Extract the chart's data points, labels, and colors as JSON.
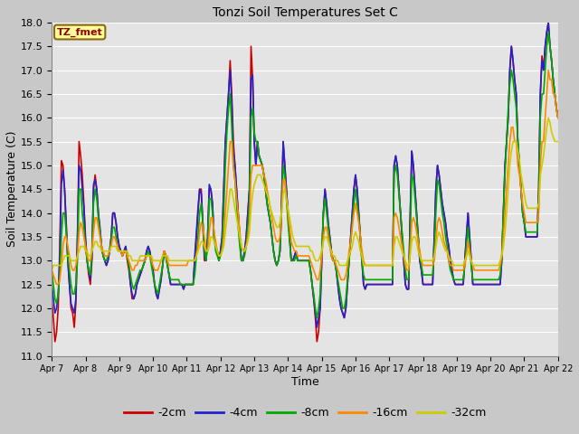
{
  "title": "Tonzi Soil Temperatures Set C",
  "xlabel": "Time",
  "ylabel": "Soil Temperature (C)",
  "ylim": [
    11.0,
    18.0
  ],
  "xtick_labels": [
    "Apr 7",
    "Apr 8",
    "Apr 9",
    "Apr 10",
    "Apr 11",
    "Apr 12",
    "Apr 13",
    "Apr 14",
    "Apr 15",
    "Apr 16",
    "Apr 17",
    "Apr 18",
    "Apr 19",
    "Apr 20",
    "Apr 21",
    "Apr 22"
  ],
  "fig_bg": "#d4d4d4",
  "plot_bg": "#e8e8e8",
  "legend_label": "TZ_fmet",
  "legend_box_color": "#ffff99",
  "legend_box_edge": "#8b6914",
  "series_colors": [
    "#cc0000",
    "#2222cc",
    "#00aa00",
    "#ff8800",
    "#cccc00"
  ],
  "series_labels": [
    "-2cm",
    "-4cm",
    "-8cm",
    "-16cm",
    "-32cm"
  ],
  "line_width": 1.2,
  "data_2cm": [
    12.2,
    11.8,
    11.3,
    11.5,
    12.0,
    13.3,
    15.1,
    15.0,
    14.5,
    13.8,
    13.0,
    12.5,
    12.0,
    11.9,
    11.6,
    12.1,
    13.5,
    15.5,
    15.2,
    14.8,
    14.2,
    13.5,
    13.0,
    12.7,
    12.5,
    13.0,
    14.5,
    14.8,
    14.5,
    14.0,
    13.6,
    13.3,
    13.1,
    13.0,
    12.9,
    13.0,
    13.2,
    13.5,
    14.0,
    14.0,
    13.8,
    13.5,
    13.3,
    13.2,
    13.1,
    13.2,
    13.3,
    13.0,
    12.8,
    12.5,
    12.2,
    12.2,
    12.3,
    12.5,
    12.6,
    12.7,
    12.8,
    12.9,
    13.0,
    13.2,
    13.3,
    13.2,
    13.0,
    12.8,
    12.5,
    12.3,
    12.2,
    12.4,
    12.6,
    12.9,
    13.2,
    13.1,
    12.9,
    12.7,
    12.5,
    12.5,
    12.5,
    12.5,
    12.5,
    12.5,
    12.5,
    12.5,
    12.4,
    12.5,
    12.5,
    12.5,
    12.5,
    12.5,
    12.5,
    13.0,
    13.5,
    14.0,
    14.5,
    14.5,
    13.8,
    13.0,
    13.0,
    13.5,
    14.5,
    14.5,
    14.2,
    13.5,
    13.3,
    13.2,
    13.0,
    13.2,
    13.5,
    14.5,
    15.5,
    16.0,
    16.5,
    17.2,
    16.5,
    15.5,
    15.0,
    14.5,
    14.0,
    13.5,
    13.0,
    13.0,
    13.2,
    13.5,
    14.0,
    14.5,
    17.5,
    16.8,
    15.5,
    15.0,
    15.5,
    15.2,
    15.1,
    15.0,
    14.8,
    14.5,
    14.2,
    14.0,
    13.8,
    13.5,
    13.2,
    13.0,
    12.9,
    13.0,
    13.2,
    14.2,
    15.5,
    15.0,
    14.5,
    14.0,
    13.5,
    13.0,
    13.0,
    13.1,
    13.2,
    13.0,
    13.0,
    13.0,
    13.0,
    13.0,
    13.0,
    13.0,
    13.0,
    12.8,
    12.5,
    12.2,
    11.8,
    11.3,
    11.5,
    12.0,
    13.0,
    14.0,
    14.5,
    14.2,
    13.8,
    13.5,
    13.2,
    13.0,
    13.0,
    12.8,
    12.5,
    12.2,
    12.0,
    11.9,
    11.8,
    12.0,
    12.5,
    13.0,
    13.5,
    14.0,
    14.5,
    14.8,
    14.5,
    14.0,
    13.5,
    13.0,
    12.5,
    12.4,
    12.5,
    12.5,
    12.5,
    12.5,
    12.5,
    12.5,
    12.5,
    12.5,
    12.5,
    12.5,
    12.5,
    12.5,
    12.5,
    12.5,
    12.5,
    12.5,
    12.5,
    15.0,
    15.2,
    15.0,
    14.5,
    14.0,
    13.5,
    13.0,
    12.5,
    12.4,
    12.4,
    13.9,
    15.3,
    15.0,
    14.5,
    14.0,
    13.5,
    13.0,
    12.8,
    12.5,
    12.5,
    12.5,
    12.5,
    12.5,
    12.5,
    12.5,
    13.5,
    14.5,
    15.0,
    14.8,
    14.5,
    14.2,
    14.0,
    13.8,
    13.5,
    13.3,
    13.0,
    12.8,
    12.6,
    12.5,
    12.5,
    12.5,
    12.5,
    12.5,
    12.5,
    13.0,
    13.5,
    14.0,
    13.5,
    13.0,
    12.5,
    12.5,
    12.5,
    12.5,
    12.5,
    12.5,
    12.5,
    12.5,
    12.5,
    12.5,
    12.5,
    12.5,
    12.5,
    12.5,
    12.5,
    12.5,
    12.5,
    12.5,
    13.0,
    14.0,
    15.0,
    15.5,
    16.0,
    17.0,
    17.5,
    17.2,
    16.8,
    16.5,
    15.5,
    15.0,
    14.5,
    14.0,
    13.8,
    13.5,
    13.5,
    13.5,
    13.5,
    13.5,
    13.5,
    13.5,
    13.5,
    14.5,
    16.5,
    17.3,
    17.0,
    17.5,
    17.8,
    18.0,
    17.5,
    17.2,
    16.8,
    16.5,
    16.2,
    16.0
  ],
  "data_4cm": [
    12.5,
    12.2,
    11.9,
    12.0,
    12.3,
    13.0,
    14.6,
    14.9,
    14.5,
    13.7,
    13.0,
    12.5,
    12.1,
    12.0,
    11.9,
    12.2,
    13.5,
    15.0,
    14.9,
    14.5,
    14.1,
    13.4,
    13.0,
    12.8,
    12.6,
    13.1,
    14.6,
    14.7,
    14.5,
    14.0,
    13.7,
    13.3,
    13.1,
    13.0,
    12.9,
    13.0,
    13.2,
    13.5,
    14.0,
    14.0,
    13.8,
    13.5,
    13.3,
    13.2,
    13.1,
    13.2,
    13.3,
    13.1,
    12.9,
    12.5,
    12.3,
    12.2,
    12.3,
    12.5,
    12.6,
    12.7,
    12.8,
    12.9,
    13.0,
    13.2,
    13.3,
    13.2,
    13.0,
    12.8,
    12.5,
    12.3,
    12.2,
    12.4,
    12.6,
    12.9,
    13.2,
    13.1,
    12.9,
    12.7,
    12.5,
    12.5,
    12.5,
    12.5,
    12.5,
    12.5,
    12.5,
    12.5,
    12.4,
    12.5,
    12.5,
    12.5,
    12.5,
    12.5,
    12.5,
    13.1,
    13.6,
    14.1,
    14.5,
    14.4,
    13.8,
    13.1,
    13.0,
    13.5,
    14.6,
    14.5,
    14.2,
    13.5,
    13.3,
    13.2,
    13.0,
    13.2,
    13.5,
    14.5,
    15.5,
    16.0,
    16.5,
    17.0,
    16.3,
    15.3,
    15.0,
    14.5,
    14.0,
    13.5,
    13.0,
    13.0,
    13.2,
    13.5,
    14.0,
    14.5,
    16.8,
    16.9,
    15.5,
    15.0,
    15.5,
    15.2,
    15.1,
    15.0,
    14.8,
    14.5,
    14.2,
    14.0,
    13.8,
    13.5,
    13.2,
    13.0,
    12.9,
    13.0,
    13.2,
    14.2,
    15.5,
    15.0,
    14.5,
    14.0,
    13.5,
    13.0,
    13.0,
    13.1,
    13.2,
    13.0,
    13.0,
    13.0,
    13.0,
    13.0,
    13.0,
    13.0,
    13.0,
    12.8,
    12.5,
    12.2,
    11.9,
    11.6,
    11.8,
    12.0,
    13.0,
    14.0,
    14.5,
    14.2,
    13.8,
    13.5,
    13.2,
    13.0,
    13.0,
    12.8,
    12.5,
    12.2,
    12.0,
    11.9,
    11.8,
    12.0,
    12.5,
    13.0,
    13.5,
    14.0,
    14.5,
    14.8,
    14.5,
    14.0,
    13.5,
    13.0,
    12.5,
    12.4,
    12.5,
    12.5,
    12.5,
    12.5,
    12.5,
    12.5,
    12.5,
    12.5,
    12.5,
    12.5,
    12.5,
    12.5,
    12.5,
    12.5,
    12.5,
    12.5,
    12.5,
    15.0,
    15.2,
    15.0,
    14.5,
    14.0,
    13.5,
    13.0,
    12.5,
    12.4,
    12.4,
    13.9,
    15.3,
    15.0,
    14.5,
    14.0,
    13.5,
    13.0,
    12.8,
    12.5,
    12.5,
    12.5,
    12.5,
    12.5,
    12.5,
    12.5,
    13.5,
    14.5,
    15.0,
    14.8,
    14.5,
    14.2,
    14.0,
    13.8,
    13.5,
    13.3,
    13.0,
    12.8,
    12.6,
    12.5,
    12.5,
    12.5,
    12.5,
    12.5,
    12.5,
    13.0,
    13.5,
    14.0,
    13.5,
    13.0,
    12.5,
    12.5,
    12.5,
    12.5,
    12.5,
    12.5,
    12.5,
    12.5,
    12.5,
    12.5,
    12.5,
    12.5,
    12.5,
    12.5,
    12.5,
    12.5,
    12.5,
    12.5,
    13.0,
    14.0,
    15.0,
    15.5,
    16.0,
    17.0,
    17.5,
    17.2,
    16.8,
    16.5,
    15.5,
    15.0,
    14.5,
    14.0,
    13.8,
    13.5,
    13.5,
    13.5,
    13.5,
    13.5,
    13.5,
    13.5,
    13.5,
    14.5,
    16.5,
    17.2,
    17.0,
    17.5,
    17.8,
    18.0,
    17.5,
    17.2,
    16.8,
    16.5,
    16.2,
    16.0
  ],
  "data_8cm": [
    12.8,
    12.5,
    12.2,
    12.1,
    12.3,
    12.7,
    13.5,
    14.0,
    14.0,
    13.6,
    13.1,
    12.8,
    12.5,
    12.3,
    12.3,
    12.5,
    13.0,
    14.5,
    14.5,
    14.0,
    13.7,
    13.3,
    13.0,
    12.8,
    12.7,
    13.2,
    14.2,
    14.5,
    14.3,
    13.9,
    13.6,
    13.3,
    13.1,
    13.0,
    13.0,
    13.1,
    13.2,
    13.4,
    13.7,
    13.7,
    13.5,
    13.3,
    13.2,
    13.2,
    13.1,
    13.2,
    13.2,
    13.1,
    12.9,
    12.7,
    12.5,
    12.4,
    12.5,
    12.6,
    12.7,
    12.8,
    12.8,
    12.9,
    13.0,
    13.1,
    13.2,
    13.1,
    12.9,
    12.7,
    12.5,
    12.4,
    12.3,
    12.5,
    12.7,
    12.9,
    13.2,
    13.1,
    12.9,
    12.7,
    12.6,
    12.6,
    12.6,
    12.6,
    12.6,
    12.6,
    12.5,
    12.5,
    12.5,
    12.5,
    12.5,
    12.5,
    12.5,
    12.5,
    12.5,
    12.7,
    13.1,
    13.5,
    14.0,
    14.2,
    13.8,
    13.2,
    13.0,
    13.3,
    14.3,
    14.3,
    14.0,
    13.5,
    13.2,
    13.1,
    13.0,
    13.1,
    13.3,
    14.0,
    15.0,
    15.7,
    16.2,
    16.5,
    15.8,
    15.0,
    14.7,
    14.2,
    13.7,
    13.3,
    13.0,
    13.0,
    13.1,
    13.3,
    13.7,
    14.2,
    16.0,
    16.2,
    15.7,
    15.5,
    15.5,
    15.2,
    15.1,
    15.0,
    14.8,
    14.5,
    14.2,
    14.0,
    13.8,
    13.5,
    13.2,
    13.0,
    12.9,
    13.0,
    13.2,
    14.0,
    15.0,
    14.8,
    14.3,
    13.8,
    13.4,
    13.0,
    13.0,
    13.0,
    13.1,
    13.0,
    13.0,
    13.0,
    13.0,
    13.0,
    13.0,
    13.0,
    13.0,
    12.8,
    12.5,
    12.3,
    12.0,
    11.8,
    12.0,
    12.3,
    13.2,
    14.0,
    14.3,
    14.0,
    13.7,
    13.4,
    13.1,
    13.0,
    13.0,
    12.8,
    12.6,
    12.4,
    12.2,
    12.0,
    12.0,
    12.2,
    12.6,
    13.0,
    13.4,
    13.8,
    14.2,
    14.5,
    14.2,
    13.9,
    13.5,
    13.0,
    12.7,
    12.6,
    12.6,
    12.6,
    12.6,
    12.6,
    12.6,
    12.6,
    12.6,
    12.6,
    12.6,
    12.6,
    12.6,
    12.6,
    12.6,
    12.6,
    12.6,
    12.6,
    12.6,
    14.8,
    15.0,
    14.8,
    14.4,
    14.0,
    13.6,
    13.2,
    12.8,
    12.6,
    12.6,
    13.5,
    14.8,
    14.7,
    14.3,
    13.9,
    13.5,
    13.1,
    12.9,
    12.7,
    12.7,
    12.7,
    12.7,
    12.7,
    12.7,
    12.7,
    13.2,
    14.0,
    14.7,
    14.6,
    14.3,
    14.0,
    13.8,
    13.5,
    13.3,
    13.0,
    12.8,
    12.7,
    12.6,
    12.6,
    12.6,
    12.6,
    12.6,
    12.6,
    12.6,
    12.9,
    13.3,
    13.7,
    13.3,
    12.9,
    12.6,
    12.6,
    12.6,
    12.6,
    12.6,
    12.6,
    12.6,
    12.6,
    12.6,
    12.6,
    12.6,
    12.6,
    12.6,
    12.6,
    12.6,
    12.6,
    12.6,
    12.7,
    13.1,
    14.0,
    14.8,
    15.5,
    16.2,
    16.7,
    17.0,
    16.8,
    16.5,
    16.2,
    15.5,
    15.0,
    14.5,
    14.0,
    13.8,
    13.6,
    13.6,
    13.6,
    13.6,
    13.6,
    13.6,
    13.6,
    13.6,
    14.2,
    16.0,
    16.5,
    16.5,
    17.0,
    17.5,
    17.8,
    17.5,
    17.2,
    16.8,
    16.5,
    16.2,
    16.0
  ],
  "data_16cm": [
    12.8,
    12.7,
    12.6,
    12.5,
    12.5,
    12.6,
    12.9,
    13.3,
    13.5,
    13.5,
    13.3,
    13.1,
    12.9,
    12.8,
    12.8,
    12.9,
    13.1,
    13.6,
    13.8,
    13.7,
    13.5,
    13.3,
    13.1,
    13.0,
    13.0,
    13.2,
    13.6,
    13.9,
    13.9,
    13.7,
    13.5,
    13.3,
    13.2,
    13.1,
    13.1,
    13.1,
    13.2,
    13.3,
    13.5,
    13.5,
    13.4,
    13.3,
    13.2,
    13.2,
    13.1,
    13.2,
    13.2,
    13.1,
    13.0,
    12.9,
    12.8,
    12.8,
    12.9,
    12.9,
    13.0,
    13.0,
    13.0,
    13.0,
    13.0,
    13.1,
    13.1,
    13.1,
    13.0,
    12.9,
    12.8,
    12.8,
    12.8,
    12.9,
    13.0,
    13.1,
    13.2,
    13.1,
    13.0,
    12.9,
    12.9,
    12.9,
    12.9,
    12.9,
    12.9,
    12.9,
    12.9,
    12.9,
    12.9,
    12.9,
    12.9,
    13.0,
    13.0,
    13.0,
    13.0,
    13.0,
    13.1,
    13.3,
    13.6,
    13.8,
    13.7,
    13.5,
    13.2,
    13.2,
    13.6,
    13.9,
    13.9,
    13.6,
    13.4,
    13.2,
    13.1,
    13.1,
    13.2,
    13.5,
    14.0,
    14.5,
    15.0,
    15.5,
    15.5,
    15.0,
    14.7,
    14.3,
    14.0,
    13.6,
    13.3,
    13.2,
    13.2,
    13.3,
    13.5,
    13.8,
    14.8,
    15.0,
    15.0,
    15.0,
    15.0,
    15.0,
    15.0,
    15.0,
    14.8,
    14.7,
    14.5,
    14.3,
    14.1,
    13.9,
    13.7,
    13.5,
    13.4,
    13.4,
    13.5,
    14.0,
    14.7,
    14.7,
    14.3,
    14.0,
    13.7,
    13.4,
    13.3,
    13.2,
    13.2,
    13.1,
    13.1,
    13.1,
    13.1,
    13.1,
    13.1,
    13.1,
    13.1,
    13.0,
    12.9,
    12.8,
    12.7,
    12.6,
    12.6,
    12.8,
    13.1,
    13.5,
    13.7,
    13.7,
    13.5,
    13.3,
    13.1,
    13.0,
    13.0,
    12.9,
    12.8,
    12.7,
    12.6,
    12.6,
    12.6,
    12.7,
    12.9,
    13.2,
    13.4,
    13.7,
    14.0,
    14.2,
    14.0,
    13.8,
    13.5,
    13.2,
    13.0,
    12.9,
    12.9,
    12.9,
    12.9,
    12.9,
    12.9,
    12.9,
    12.9,
    12.9,
    12.9,
    12.9,
    12.9,
    12.9,
    12.9,
    12.9,
    12.9,
    12.9,
    12.9,
    13.9,
    14.0,
    13.9,
    13.7,
    13.5,
    13.3,
    13.1,
    12.9,
    12.8,
    12.8,
    13.2,
    13.8,
    13.9,
    13.8,
    13.6,
    13.4,
    13.2,
    13.0,
    12.9,
    12.9,
    12.9,
    12.9,
    12.9,
    12.9,
    12.9,
    13.0,
    13.4,
    13.8,
    13.9,
    13.8,
    13.6,
    13.4,
    13.3,
    13.2,
    13.0,
    12.9,
    12.9,
    12.8,
    12.8,
    12.8,
    12.8,
    12.8,
    12.8,
    12.8,
    12.9,
    13.1,
    13.4,
    13.2,
    13.0,
    12.9,
    12.8,
    12.8,
    12.8,
    12.8,
    12.8,
    12.8,
    12.8,
    12.8,
    12.8,
    12.8,
    12.8,
    12.8,
    12.8,
    12.8,
    12.8,
    12.8,
    12.9,
    13.1,
    13.5,
    14.0,
    14.5,
    15.0,
    15.5,
    15.8,
    15.8,
    15.5,
    15.5,
    15.0,
    14.8,
    14.5,
    14.2,
    14.0,
    13.8,
    13.8,
    13.8,
    13.8,
    13.8,
    13.8,
    13.8,
    13.8,
    14.0,
    15.0,
    15.5,
    15.5,
    16.0,
    16.5,
    17.0,
    16.8,
    16.8,
    16.5,
    16.5,
    16.2,
    16.0
  ],
  "data_32cm": [
    12.8,
    12.9,
    12.9,
    12.9,
    12.9,
    12.9,
    12.9,
    13.0,
    13.1,
    13.1,
    13.1,
    13.1,
    13.0,
    13.0,
    13.0,
    13.0,
    13.1,
    13.2,
    13.3,
    13.3,
    13.3,
    13.2,
    13.2,
    13.1,
    13.1,
    13.2,
    13.3,
    13.4,
    13.4,
    13.3,
    13.3,
    13.2,
    13.2,
    13.2,
    13.2,
    13.2,
    13.2,
    13.3,
    13.3,
    13.3,
    13.3,
    13.2,
    13.2,
    13.2,
    13.2,
    13.2,
    13.2,
    13.2,
    13.1,
    13.1,
    13.0,
    13.0,
    13.0,
    13.0,
    13.0,
    13.1,
    13.1,
    13.1,
    13.1,
    13.1,
    13.1,
    13.1,
    13.1,
    13.0,
    13.0,
    13.0,
    13.0,
    13.0,
    13.0,
    13.1,
    13.1,
    13.1,
    13.1,
    13.0,
    13.0,
    13.0,
    13.0,
    13.0,
    13.0,
    13.0,
    13.0,
    13.0,
    13.0,
    13.0,
    13.0,
    13.0,
    13.0,
    13.0,
    13.0,
    13.0,
    13.1,
    13.2,
    13.3,
    13.4,
    13.4,
    13.3,
    13.2,
    13.2,
    13.3,
    13.5,
    13.5,
    13.4,
    13.3,
    13.2,
    13.1,
    13.1,
    13.2,
    13.3,
    13.6,
    13.9,
    14.2,
    14.5,
    14.5,
    14.3,
    14.1,
    13.9,
    13.7,
    13.5,
    13.3,
    13.2,
    13.2,
    13.3,
    13.4,
    13.6,
    14.1,
    14.4,
    14.6,
    14.7,
    14.8,
    14.8,
    14.8,
    14.7,
    14.6,
    14.5,
    14.4,
    14.3,
    14.1,
    14.0,
    13.9,
    13.8,
    13.7,
    13.7,
    13.8,
    14.0,
    14.4,
    14.5,
    14.3,
    14.1,
    13.9,
    13.7,
    13.5,
    13.4,
    13.3,
    13.3,
    13.3,
    13.3,
    13.3,
    13.3,
    13.3,
    13.3,
    13.3,
    13.2,
    13.2,
    13.1,
    13.0,
    13.0,
    13.0,
    13.1,
    13.2,
    13.4,
    13.5,
    13.5,
    13.4,
    13.3,
    13.2,
    13.1,
    13.1,
    13.0,
    13.0,
    12.9,
    12.9,
    12.9,
    12.9,
    12.9,
    13.0,
    13.1,
    13.2,
    13.3,
    13.5,
    13.6,
    13.5,
    13.4,
    13.2,
    13.1,
    12.9,
    12.9,
    12.9,
    12.9,
    12.9,
    12.9,
    12.9,
    12.9,
    12.9,
    12.9,
    12.9,
    12.9,
    12.9,
    12.9,
    12.9,
    12.9,
    12.9,
    12.9,
    12.9,
    13.3,
    13.5,
    13.5,
    13.4,
    13.3,
    13.2,
    13.1,
    13.0,
    12.9,
    12.9,
    13.1,
    13.4,
    13.5,
    13.5,
    13.4,
    13.2,
    13.1,
    13.0,
    13.0,
    13.0,
    13.0,
    13.0,
    13.0,
    13.0,
    13.0,
    13.1,
    13.3,
    13.5,
    13.6,
    13.5,
    13.4,
    13.3,
    13.2,
    13.2,
    13.1,
    13.0,
    13.0,
    12.9,
    12.9,
    12.9,
    12.9,
    12.9,
    12.9,
    12.9,
    13.0,
    13.1,
    13.2,
    13.1,
    13.0,
    12.9,
    12.9,
    12.9,
    12.9,
    12.9,
    12.9,
    12.9,
    12.9,
    12.9,
    12.9,
    12.9,
    12.9,
    12.9,
    12.9,
    12.9,
    12.9,
    12.9,
    13.0,
    13.1,
    13.3,
    13.6,
    14.0,
    14.5,
    15.0,
    15.3,
    15.5,
    15.5,
    15.5,
    15.3,
    15.1,
    14.8,
    14.6,
    14.4,
    14.2,
    14.1,
    14.1,
    14.1,
    14.1,
    14.1,
    14.1,
    14.1,
    14.2,
    14.8,
    15.0,
    15.2,
    15.5,
    15.8,
    16.0,
    15.9,
    15.7,
    15.6,
    15.5,
    15.5,
    15.5
  ]
}
